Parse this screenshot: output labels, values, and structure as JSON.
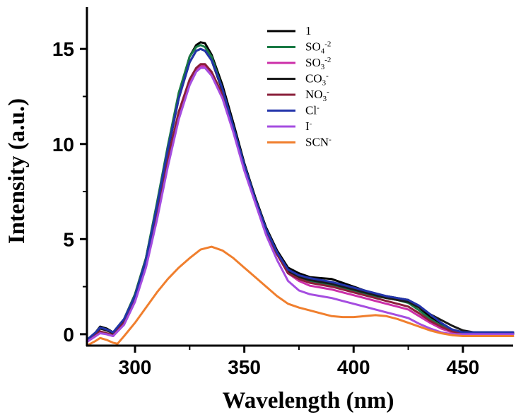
{
  "chart_data": {
    "type": "line",
    "title": "",
    "xlabel": "Wavelength (nm)",
    "ylabel": "Intensity (a.u.)",
    "xlim": [
      278,
      473
    ],
    "ylim": [
      -0.6,
      17.2
    ],
    "xticks": [
      300,
      350,
      400,
      450
    ],
    "yticks": [
      0,
      5,
      10,
      15
    ],
    "legend_position": "top-right",
    "series": [
      {
        "name": "1",
        "label_base": "1",
        "label_sub": "",
        "label_sup": "",
        "color": "#000000",
        "x": [
          278,
          282,
          284,
          287,
          290,
          295,
          300,
          305,
          310,
          315,
          320,
          325,
          328,
          330,
          332,
          335,
          340,
          345,
          350,
          355,
          360,
          365,
          370,
          375,
          380,
          385,
          390,
          395,
          400,
          405,
          410,
          415,
          420,
          425,
          430,
          435,
          440,
          445,
          450,
          455,
          460,
          465,
          470,
          473
        ],
        "y": [
          -0.3,
          0.1,
          0.4,
          0.3,
          0.1,
          0.8,
          2.1,
          4.0,
          6.8,
          9.8,
          12.6,
          14.6,
          15.2,
          15.35,
          15.3,
          14.7,
          13.1,
          11.1,
          9.0,
          7.2,
          5.6,
          4.4,
          3.5,
          3.2,
          3.0,
          2.95,
          2.9,
          2.7,
          2.5,
          2.3,
          2.1,
          2.0,
          1.9,
          1.8,
          1.4,
          0.9,
          0.5,
          0.25,
          0.1,
          0.1,
          0.1,
          0.1,
          0.1,
          0.1
        ]
      },
      {
        "name": "SO4-2",
        "label_base": "SO",
        "label_sub": "4",
        "label_sup": "-2",
        "color": "#1a7a45",
        "x": [
          278,
          282,
          284,
          287,
          290,
          295,
          300,
          305,
          310,
          315,
          320,
          325,
          328,
          330,
          332,
          335,
          340,
          345,
          350,
          355,
          360,
          365,
          370,
          375,
          380,
          385,
          390,
          395,
          400,
          405,
          410,
          415,
          420,
          425,
          430,
          435,
          440,
          445,
          450,
          455,
          460,
          465,
          470,
          473
        ],
        "y": [
          -0.3,
          0.1,
          0.35,
          0.25,
          0.1,
          0.8,
          2.1,
          4.0,
          6.9,
          9.9,
          12.7,
          14.6,
          15.1,
          15.2,
          15.1,
          14.6,
          12.9,
          10.9,
          8.9,
          7.1,
          5.5,
          4.3,
          3.3,
          3.0,
          2.8,
          2.7,
          2.6,
          2.45,
          2.3,
          2.15,
          2.0,
          1.9,
          1.8,
          1.65,
          1.25,
          0.8,
          0.45,
          0.2,
          0.1,
          0.1,
          0.1,
          0.1,
          0.05,
          0.05
        ]
      },
      {
        "name": "SO3-2",
        "label_base": "SO",
        "label_sub": "3",
        "label_sup": "-2",
        "color": "#cc2fa8",
        "x": [
          278,
          282,
          284,
          287,
          290,
          295,
          300,
          305,
          310,
          315,
          320,
          325,
          328,
          330,
          332,
          335,
          340,
          345,
          350,
          355,
          360,
          365,
          370,
          375,
          380,
          385,
          390,
          395,
          400,
          405,
          410,
          415,
          420,
          425,
          430,
          435,
          440,
          445,
          450,
          455,
          460,
          465,
          470,
          473
        ],
        "y": [
          -0.4,
          -0.1,
          0.1,
          0.0,
          -0.1,
          0.6,
          1.8,
          3.6,
          6.2,
          9.0,
          11.5,
          13.2,
          13.9,
          14.1,
          14.1,
          13.7,
          12.5,
          10.7,
          8.7,
          7.0,
          5.4,
          4.2,
          3.2,
          2.8,
          2.55,
          2.45,
          2.35,
          2.2,
          2.05,
          1.9,
          1.75,
          1.6,
          1.45,
          1.3,
          0.95,
          0.6,
          0.3,
          0.1,
          0.0,
          0.0,
          0.0,
          0.0,
          0.0,
          0.0
        ]
      },
      {
        "name": "CO3-",
        "label_base": "CO",
        "label_sub": "3",
        "label_sup": "-",
        "color": "#1a1a1a",
        "x": [
          278,
          282,
          284,
          287,
          290,
          295,
          300,
          305,
          310,
          315,
          320,
          325,
          328,
          330,
          332,
          335,
          340,
          345,
          350,
          355,
          360,
          365,
          370,
          375,
          380,
          385,
          390,
          395,
          400,
          405,
          410,
          415,
          420,
          425,
          430,
          435,
          440,
          445,
          450,
          455,
          460,
          465,
          470,
          473
        ],
        "y": [
          -0.35,
          0.05,
          0.3,
          0.2,
          0.05,
          0.7,
          2.0,
          3.9,
          6.6,
          9.6,
          12.4,
          14.3,
          14.9,
          15.0,
          14.9,
          14.4,
          12.8,
          10.8,
          8.8,
          7.0,
          5.4,
          4.2,
          3.3,
          3.0,
          2.85,
          2.75,
          2.65,
          2.5,
          2.35,
          2.2,
          2.05,
          1.9,
          1.8,
          1.7,
          1.4,
          1.05,
          0.75,
          0.45,
          0.2,
          0.1,
          0.05,
          0.05,
          0.05,
          0.05
        ]
      },
      {
        "name": "NO3-",
        "label_base": "NO",
        "label_sub": "3",
        "label_sup": "-",
        "color": "#8a1f3a",
        "x": [
          278,
          282,
          284,
          287,
          290,
          295,
          300,
          305,
          310,
          315,
          320,
          325,
          328,
          330,
          332,
          335,
          340,
          345,
          350,
          355,
          360,
          365,
          370,
          375,
          380,
          385,
          390,
          395,
          400,
          405,
          410,
          415,
          420,
          425,
          430,
          435,
          440,
          445,
          450,
          455,
          460,
          465,
          470,
          473
        ],
        "y": [
          -0.4,
          -0.05,
          0.15,
          0.05,
          -0.05,
          0.6,
          1.8,
          3.7,
          6.3,
          9.2,
          11.7,
          13.4,
          14.0,
          14.2,
          14.2,
          13.8,
          12.6,
          10.8,
          8.8,
          7.0,
          5.4,
          4.2,
          3.2,
          2.9,
          2.7,
          2.6,
          2.5,
          2.35,
          2.2,
          2.05,
          1.9,
          1.75,
          1.6,
          1.45,
          1.1,
          0.7,
          0.4,
          0.15,
          0.05,
          0.0,
          0.0,
          0.0,
          0.0,
          0.0
        ]
      },
      {
        "name": "Cl-",
        "label_base": "Cl",
        "label_sub": "",
        "label_sup": "-",
        "color": "#2233aa",
        "x": [
          278,
          282,
          284,
          287,
          290,
          295,
          300,
          305,
          310,
          315,
          320,
          325,
          328,
          330,
          332,
          335,
          340,
          345,
          350,
          355,
          360,
          365,
          370,
          375,
          380,
          385,
          390,
          395,
          400,
          405,
          410,
          415,
          420,
          425,
          430,
          435,
          440,
          445,
          450,
          455,
          460,
          465,
          470,
          473
        ],
        "y": [
          -0.3,
          0.1,
          0.35,
          0.25,
          0.1,
          0.8,
          2.0,
          3.9,
          6.7,
          9.7,
          12.4,
          14.3,
          14.9,
          15.0,
          14.9,
          14.4,
          12.9,
          10.9,
          8.9,
          7.1,
          5.5,
          4.3,
          3.4,
          3.1,
          2.95,
          2.85,
          2.75,
          2.6,
          2.45,
          2.3,
          2.15,
          2.0,
          1.9,
          1.8,
          1.5,
          1.05,
          0.6,
          0.25,
          0.1,
          0.1,
          0.1,
          0.1,
          0.1,
          0.1
        ]
      },
      {
        "name": "I-",
        "label_base": "I",
        "label_sub": "",
        "label_sup": "-",
        "color": "#a54de0",
        "x": [
          278,
          282,
          284,
          287,
          290,
          295,
          300,
          305,
          310,
          315,
          320,
          325,
          328,
          330,
          332,
          335,
          340,
          345,
          350,
          355,
          360,
          365,
          370,
          375,
          380,
          385,
          390,
          395,
          400,
          405,
          410,
          415,
          420,
          425,
          430,
          435,
          440,
          445,
          450,
          455,
          460,
          465,
          470,
          473
        ],
        "y": [
          -0.4,
          -0.1,
          0.05,
          0.0,
          -0.1,
          0.5,
          1.7,
          3.5,
          6.0,
          8.8,
          11.3,
          13.1,
          13.8,
          14.0,
          14.0,
          13.6,
          12.4,
          10.6,
          8.6,
          6.9,
          5.2,
          3.9,
          2.8,
          2.3,
          2.1,
          2.0,
          1.9,
          1.75,
          1.6,
          1.45,
          1.3,
          1.15,
          1.0,
          0.85,
          0.55,
          0.3,
          0.1,
          0.0,
          0.0,
          0.0,
          0.0,
          0.0,
          0.0,
          0.0
        ]
      },
      {
        "name": "SCN-",
        "label_base": "SCN",
        "label_sub": "",
        "label_sup": "-",
        "color": "#f07f2e",
        "x": [
          278,
          282,
          284,
          287,
          290,
          292,
          295,
          300,
          305,
          310,
          315,
          320,
          325,
          330,
          335,
          340,
          345,
          350,
          355,
          360,
          365,
          370,
          375,
          380,
          385,
          390,
          395,
          400,
          405,
          410,
          415,
          420,
          425,
          430,
          435,
          440,
          445,
          450,
          455,
          460,
          465,
          470,
          473
        ],
        "y": [
          -0.6,
          -0.35,
          -0.2,
          -0.3,
          -0.45,
          -0.5,
          -0.1,
          0.6,
          1.4,
          2.2,
          2.9,
          3.5,
          4.0,
          4.45,
          4.6,
          4.4,
          4.0,
          3.5,
          3.0,
          2.5,
          2.0,
          1.6,
          1.4,
          1.25,
          1.1,
          0.95,
          0.9,
          0.9,
          0.95,
          1.0,
          0.95,
          0.8,
          0.6,
          0.4,
          0.2,
          0.05,
          -0.05,
          -0.1,
          -0.1,
          -0.1,
          -0.1,
          -0.1,
          -0.1
        ]
      }
    ]
  }
}
